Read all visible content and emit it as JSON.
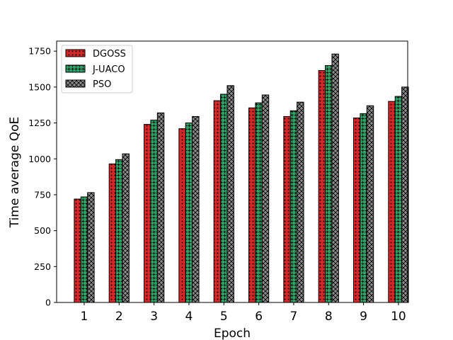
{
  "chart_data": {
    "type": "bar",
    "title": "",
    "xlabel": "Epoch",
    "ylabel": "Time average QoE",
    "ylim": [
      0,
      1820
    ],
    "yticks": [
      0,
      250,
      500,
      750,
      1000,
      1250,
      1500,
      1750
    ],
    "categories": [
      "1",
      "2",
      "3",
      "4",
      "5",
      "6",
      "7",
      "8",
      "9",
      "10"
    ],
    "grid": false,
    "legend_position": "top-left",
    "series": [
      {
        "name": "DGOSS",
        "color": "#d62728",
        "hatch": "dots",
        "values": [
          720,
          965,
          1240,
          1210,
          1405,
          1355,
          1295,
          1615,
          1285,
          1400
        ]
      },
      {
        "name": "J-UACO",
        "color": "#2ca064",
        "hatch": "stars",
        "values": [
          735,
          995,
          1270,
          1250,
          1450,
          1390,
          1335,
          1650,
          1315,
          1435
        ]
      },
      {
        "name": "PSO",
        "color": "#8c8c8c",
        "hatch": "cross",
        "values": [
          765,
          1035,
          1320,
          1295,
          1510,
          1445,
          1395,
          1730,
          1370,
          1500
        ]
      }
    ]
  }
}
